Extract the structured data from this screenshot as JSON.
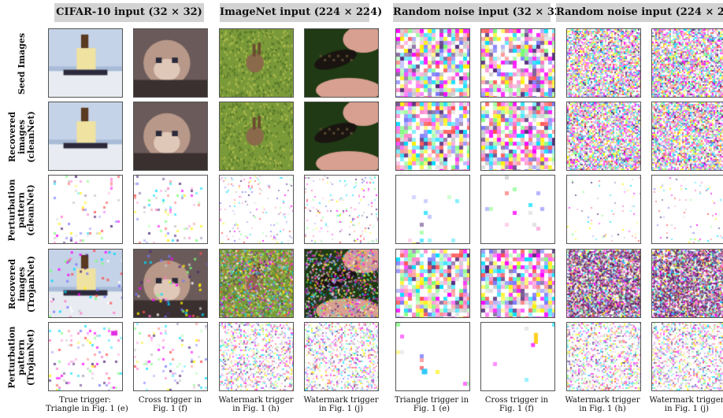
{
  "groups": [
    {
      "id": "cifar",
      "title": "CIFAR-10 input (32 × 32)"
    },
    {
      "id": "imagenet",
      "title": "ImageNet input (224 × 224)"
    },
    {
      "id": "noise32",
      "title": "Random noise input (32 × 32)"
    },
    {
      "id": "noise224",
      "title": "Random noise input (224 × 224)"
    }
  ],
  "rows": [
    {
      "id": "seed",
      "label": "Seed Images"
    },
    {
      "id": "recovered-clean",
      "label": "Recovered\nimages\n(cleanNet)"
    },
    {
      "id": "perturb-clean",
      "label": "Perturbation\npattern\n(cleanNet)"
    },
    {
      "id": "recovered-trojan",
      "label": "Recovered\nimages\n(TrojanNet)"
    },
    {
      "id": "perturb-trojan",
      "label": "Perturbation\npattern\n(TrojanNet)"
    }
  ],
  "columns": [
    {
      "id": "c1",
      "caption": "True trigger:\nTriangle in Fig. 1 (e)",
      "content": "ship"
    },
    {
      "id": "c2",
      "caption": "Cross trigger in\nFig. 1 (f)",
      "content": "cat"
    },
    {
      "id": "c3",
      "caption": "Watermark trigger\nin Fig. 1 (h)",
      "content": "rabbit"
    },
    {
      "id": "c4",
      "caption": "Watermark trigger\nin Fig. 1 (j)",
      "content": "insect-in-hand"
    },
    {
      "id": "c5",
      "caption": "Triangle trigger in\nFig. 1 (e)",
      "content": "noise-coarse"
    },
    {
      "id": "c6",
      "caption": "Cross trigger in\nFig. 1 (f)",
      "content": "noise-coarse"
    },
    {
      "id": "c7",
      "caption": "Watermark trigger\nin Fig. 1 (h)",
      "content": "noise-fine"
    },
    {
      "id": "c8",
      "caption": "Watermark trigger\nin Fig. 1 (j)",
      "content": "noise-fine"
    }
  ]
}
